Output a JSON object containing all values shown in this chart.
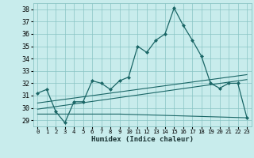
{
  "xlabel": "Humidex (Indice chaleur)",
  "bg_color": "#c8ecec",
  "grid_color": "#89c4c4",
  "line_color": "#1a6666",
  "marker_color": "#1a6666",
  "xlim": [
    -0.5,
    23.5
  ],
  "ylim": [
    28.5,
    38.5
  ],
  "yticks": [
    29,
    30,
    31,
    32,
    33,
    34,
    35,
    36,
    37,
    38
  ],
  "xticks": [
    0,
    1,
    2,
    3,
    4,
    5,
    6,
    7,
    8,
    9,
    10,
    11,
    12,
    13,
    14,
    15,
    16,
    17,
    18,
    19,
    20,
    21,
    22,
    23
  ],
  "main_series": {
    "x": [
      0,
      1,
      2,
      3,
      4,
      5,
      6,
      7,
      8,
      9,
      10,
      11,
      12,
      13,
      14,
      15,
      16,
      17,
      18,
      19,
      20,
      21,
      22,
      23
    ],
    "y": [
      31.2,
      31.5,
      29.7,
      28.8,
      30.5,
      30.5,
      32.2,
      32.0,
      31.5,
      32.2,
      32.5,
      35.0,
      34.5,
      35.5,
      36.0,
      38.1,
      36.7,
      35.5,
      34.2,
      32.0,
      31.6,
      32.0,
      32.0,
      29.2
    ]
  },
  "line_series": [
    {
      "x": [
        0,
        23
      ],
      "y": [
        29.9,
        32.3
      ]
    },
    {
      "x": [
        0,
        9,
        23
      ],
      "y": [
        29.5,
        29.5,
        29.2
      ]
    },
    {
      "x": [
        0,
        23
      ],
      "y": [
        30.4,
        32.7
      ]
    }
  ]
}
